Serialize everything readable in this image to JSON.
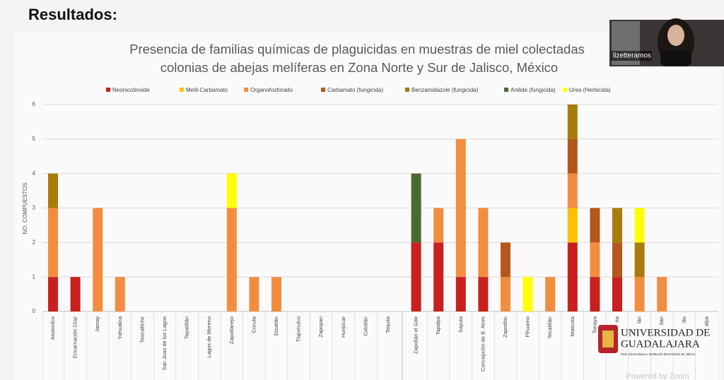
{
  "heading": "Resultados:",
  "participant": "lizetteramos",
  "logo": {
    "line1": "UNIVERSIDAD DE",
    "line2": "GUADALAJARA",
    "tagline": "Red Universitaria e Institución Benemérita de Jalisco"
  },
  "watermark": "Powered by Zoom",
  "chart_data": {
    "type": "stacked_bar",
    "title": [
      "Presencia de familias químicas de plaguicidas en muestras de miel colectadas",
      "colonias de abejas melíferas en Zona Norte y  Sur de Jalisco, México"
    ],
    "y_label": "NO. COMPUESTOS",
    "categories": [
      "Atotonilco",
      "Encarnación Díaz",
      "Jamay",
      "Yahualica",
      "Teocaltiche",
      "San Juan de los Lagos",
      "Tepatitlán",
      "Lagos de Moreno",
      "Zapotlanejo",
      "Cocula",
      "Etzatlán",
      "Tlajomulco",
      "Zapopan",
      "Huejúcar",
      "Colotlán",
      "Tequila",
      "Zapotlán el Gde",
      "Tapalpa",
      "Sayula",
      "Concepción de B. Aires",
      "Zapotiltic",
      "Pihuamo",
      "Tecalitlán",
      "Mascota",
      "Tonaya",
      "rta",
      "lán",
      "tlán",
      "illo",
      "alpa"
    ],
    "series": [
      {
        "name": "Neonicotinoide",
        "color": "#c9201f",
        "values": [
          1,
          1,
          0,
          0,
          0,
          0,
          0,
          0,
          0,
          0,
          0,
          0,
          0,
          0,
          0,
          0,
          2,
          2,
          1,
          1,
          0,
          0,
          0,
          2,
          1,
          1,
          0,
          0,
          0,
          0
        ]
      },
      {
        "name": "Metil-Carbamato",
        "color": "#ffc000",
        "values": [
          0,
          0,
          0,
          0,
          0,
          0,
          0,
          0,
          0,
          0,
          0,
          0,
          0,
          0,
          0,
          0,
          0,
          0,
          0,
          0,
          0,
          0,
          0,
          1,
          0,
          0,
          0,
          0,
          0,
          0
        ]
      },
      {
        "name": "Organofosforado",
        "color": "#f28d3f",
        "values": [
          2,
          0,
          3,
          1,
          0,
          0,
          0,
          0,
          3,
          1,
          1,
          0,
          0,
          0,
          0,
          0,
          0,
          1,
          4,
          2,
          1,
          0,
          1,
          1,
          1,
          0,
          1,
          1,
          0,
          0
        ]
      },
      {
        "name": "Carbamato (fungicida)",
        "color": "#b5561b",
        "values": [
          0,
          0,
          0,
          0,
          0,
          0,
          0,
          0,
          0,
          0,
          0,
          0,
          0,
          0,
          0,
          0,
          0,
          0,
          0,
          0,
          1,
          0,
          0,
          1,
          1,
          1,
          0,
          0,
          0,
          0
        ]
      },
      {
        "name": "Benzamidazole (fungicida)",
        "color": "#a87c0c",
        "values": [
          1,
          0,
          0,
          0,
          0,
          0,
          0,
          0,
          0,
          0,
          0,
          0,
          0,
          0,
          0,
          0,
          0,
          0,
          0,
          0,
          0,
          0,
          0,
          1,
          0,
          1,
          1,
          0,
          0,
          0
        ]
      },
      {
        "name": "Anilide (fungicida)",
        "color": "#4b6b2e",
        "values": [
          0,
          0,
          0,
          0,
          0,
          0,
          0,
          0,
          0,
          0,
          0,
          0,
          0,
          0,
          0,
          0,
          2,
          0,
          0,
          0,
          0,
          0,
          0,
          0,
          0,
          0,
          0,
          0,
          0,
          0
        ]
      },
      {
        "name": "Urea (Herbicida)",
        "color": "#ffff00",
        "values": [
          0,
          0,
          0,
          0,
          0,
          0,
          0,
          0,
          1,
          0,
          0,
          0,
          0,
          0,
          0,
          0,
          0,
          0,
          0,
          0,
          0,
          1,
          0,
          0,
          0,
          0,
          1,
          0,
          0,
          0
        ]
      }
    ],
    "ylim": [
      0,
      6
    ],
    "yticks": [
      0,
      1,
      2,
      3,
      4,
      5,
      6
    ],
    "grid": true,
    "legend": "top"
  }
}
